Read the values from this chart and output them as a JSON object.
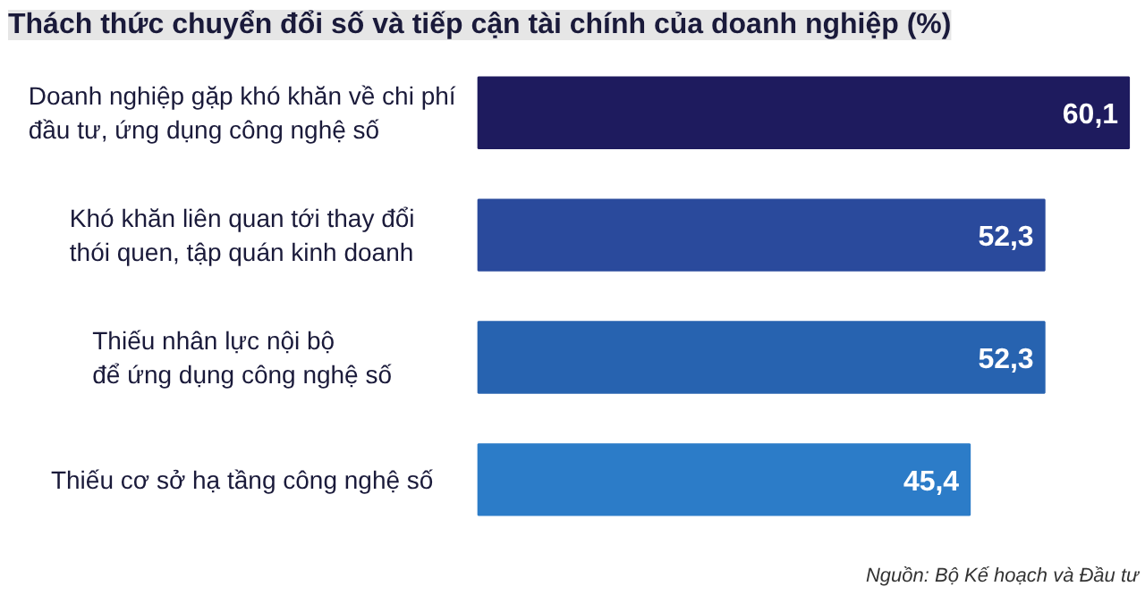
{
  "chart_data": {
    "type": "bar",
    "orientation": "horizontal",
    "title": "Thách thức chuyển đổi số và tiếp cận tài chính của doanh nghiệp (%)",
    "categories": [
      "Doanh nghiệp gặp khó khăn về chi phí\nđầu tư, ứng dụng công nghệ số",
      "Khó khăn liên quan tới thay đổi\nthói quen, tập quán kinh doanh",
      "Thiếu nhân lực nội bộ\nđể ứng dụng công nghệ số",
      "Thiếu cơ sở hạ tầng công nghệ số"
    ],
    "values": [
      60.1,
      52.3,
      52.3,
      45.4
    ],
    "colors": [
      "#1e1b5e",
      "#2a4a9c",
      "#2763b0",
      "#2c7cc8"
    ],
    "value_labels": [
      "60,1",
      "52,3",
      "52,3",
      "45,4"
    ],
    "annotations": [
      "Nguồn: Bộ Kế hoạch và Đầu tư"
    ],
    "grid": false
  }
}
